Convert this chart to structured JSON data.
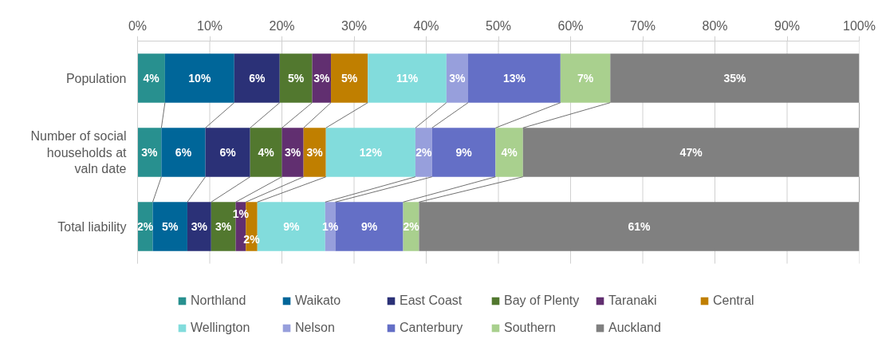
{
  "chart_data": {
    "type": "bar",
    "orientation": "horizontal",
    "stacked": true,
    "categories": [
      "Population",
      "Number of social households at valn date",
      "Total liability"
    ],
    "xlim": [
      0,
      100
    ],
    "xticks": [
      {
        "value": 0,
        "label": "0%"
      },
      {
        "value": 10,
        "label": "10%"
      },
      {
        "value": 20,
        "label": "20%"
      },
      {
        "value": 30,
        "label": "30%"
      },
      {
        "value": 40,
        "label": "40%"
      },
      {
        "value": 50,
        "label": "50%"
      },
      {
        "value": 60,
        "label": "60%"
      },
      {
        "value": 70,
        "label": "70%"
      },
      {
        "value": 80,
        "label": "80%"
      },
      {
        "value": 90,
        "label": "90%"
      },
      {
        "value": 100,
        "label": "100%"
      }
    ],
    "grid": "x",
    "legend": "bottom",
    "series": [
      {
        "name": "Northland",
        "color": "#28908f",
        "values": [
          3.8,
          3.3,
          2.1
        ],
        "value_labels": [
          "4%",
          "3%",
          "2%"
        ]
      },
      {
        "name": "Waikato",
        "color": "#006699",
        "values": [
          9.6,
          6.1,
          4.8
        ],
        "value_labels": [
          "10%",
          "6%",
          "5%"
        ]
      },
      {
        "name": "East Coast",
        "color": "#2b3177",
        "values": [
          6.3,
          6.2,
          3.3
        ],
        "value_labels": [
          "6%",
          "6%",
          "3%"
        ]
      },
      {
        "name": "Bay of Plenty",
        "color": "#52782f",
        "values": [
          4.5,
          4.4,
          3.4
        ],
        "value_labels": [
          "5%",
          "4%",
          "3%"
        ]
      },
      {
        "name": "Taranaki",
        "color": "#612f70",
        "values": [
          2.6,
          3.0,
          1.4
        ],
        "value_labels": [
          "3%",
          "3%",
          "1%"
        ]
      },
      {
        "name": "Central",
        "color": "#c07f00",
        "values": [
          5.1,
          3.1,
          1.6
        ],
        "value_labels": [
          "5%",
          "3%",
          "2%"
        ]
      },
      {
        "name": "Wellington",
        "color": "#82dcdc",
        "values": [
          10.9,
          12.4,
          9.4
        ],
        "value_labels": [
          "11%",
          "12%",
          "9%"
        ]
      },
      {
        "name": "Nelson",
        "color": "#979fdc",
        "values": [
          3.0,
          2.3,
          1.4
        ],
        "value_labels": [
          "3%",
          "2%",
          "1%"
        ]
      },
      {
        "name": "Canterbury",
        "color": "#646fc6",
        "values": [
          12.8,
          8.8,
          9.4
        ],
        "value_labels": [
          "13%",
          "9%",
          "9%"
        ]
      },
      {
        "name": "Southern",
        "color": "#a9d08e",
        "values": [
          6.9,
          3.8,
          2.2
        ],
        "value_labels": [
          "7%",
          "4%",
          "2%"
        ]
      },
      {
        "name": "Auckland",
        "color": "#808080",
        "values": [
          34.5,
          46.6,
          61.0
        ],
        "value_labels": [
          "35%",
          "47%",
          "61%"
        ]
      }
    ]
  }
}
